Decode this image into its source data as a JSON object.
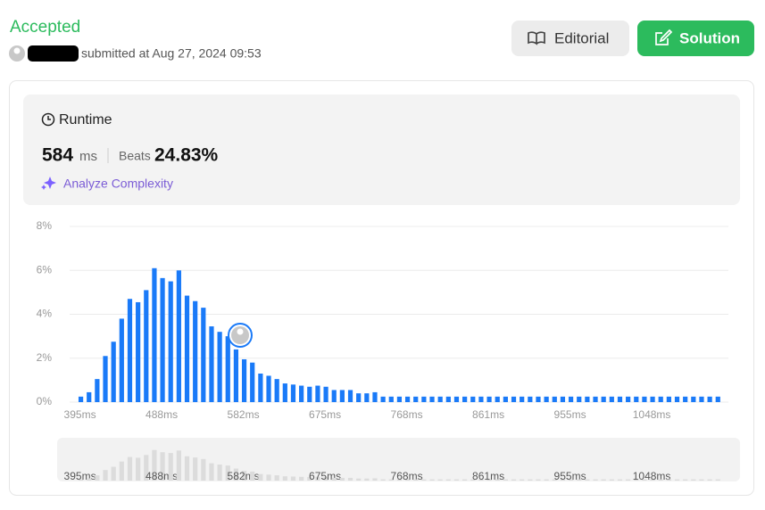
{
  "header": {
    "status": "Accepted",
    "submitted": "submitted at Aug 27, 2024 09:53",
    "buttons": [
      "Editorial",
      "Solution"
    ]
  },
  "runtime": {
    "title": "Runtime",
    "value": "584",
    "unit": "ms",
    "beats_label": "Beats",
    "beats": "24.83%",
    "analyze": "Analyze Complexity"
  },
  "chart_data": {
    "type": "bar",
    "color": "#1a7af8",
    "mini_color": "#dcdcdc",
    "categories": [
      "395ms",
      null,
      null,
      null,
      null,
      null,
      null,
      null,
      null,
      null,
      "488ms",
      null,
      null,
      null,
      null,
      null,
      null,
      null,
      null,
      null,
      "582ms",
      null,
      null,
      null,
      null,
      null,
      null,
      null,
      null,
      null,
      "675ms",
      null,
      null,
      null,
      null,
      null,
      null,
      null,
      null,
      null,
      "768ms",
      null,
      null,
      null,
      null,
      null,
      null,
      null,
      null,
      null,
      "861ms",
      null,
      null,
      null,
      null,
      null,
      null,
      null,
      null,
      null,
      "955ms",
      null,
      null,
      null,
      null,
      null,
      null,
      null,
      null,
      null,
      "1048ms",
      null,
      null,
      null,
      null,
      null,
      null,
      null,
      null
    ],
    "values": [
      0.25,
      0.45,
      1.05,
      2.1,
      2.75,
      3.8,
      4.7,
      4.55,
      5.1,
      6.1,
      5.65,
      5.5,
      6.0,
      4.85,
      4.6,
      4.3,
      3.45,
      3.2,
      3.0,
      2.4,
      1.95,
      1.8,
      1.3,
      1.2,
      1.05,
      0.85,
      0.8,
      0.75,
      0.7,
      0.75,
      0.7,
      0.55,
      0.55,
      0.55,
      0.4,
      0.4,
      0.45,
      0.25,
      0.25,
      0.25,
      0.25,
      0.25,
      0.25,
      0.25,
      0.25,
      0.25,
      0.25,
      0.25,
      0.25,
      0.25,
      0.25,
      0.25,
      0.25,
      0.25,
      0.25,
      0.25,
      0.25,
      0.25,
      0.25,
      0.25,
      0.25,
      0.25,
      0.25,
      0.25,
      0.25,
      0.25,
      0.25,
      0.25,
      0.25,
      0.25,
      0.25,
      0.25,
      0.25,
      0.25,
      0.25,
      0.25,
      0.25,
      0.25,
      0.25
    ],
    "ylim": [
      0,
      8
    ],
    "yticks": [
      {
        "value": 0,
        "label": "0%"
      },
      {
        "value": 2,
        "label": "2%"
      },
      {
        "value": 4,
        "label": "4%"
      },
      {
        "value": 6,
        "label": "6%"
      },
      {
        "value": 8,
        "label": "8%"
      }
    ],
    "grid": true
  }
}
